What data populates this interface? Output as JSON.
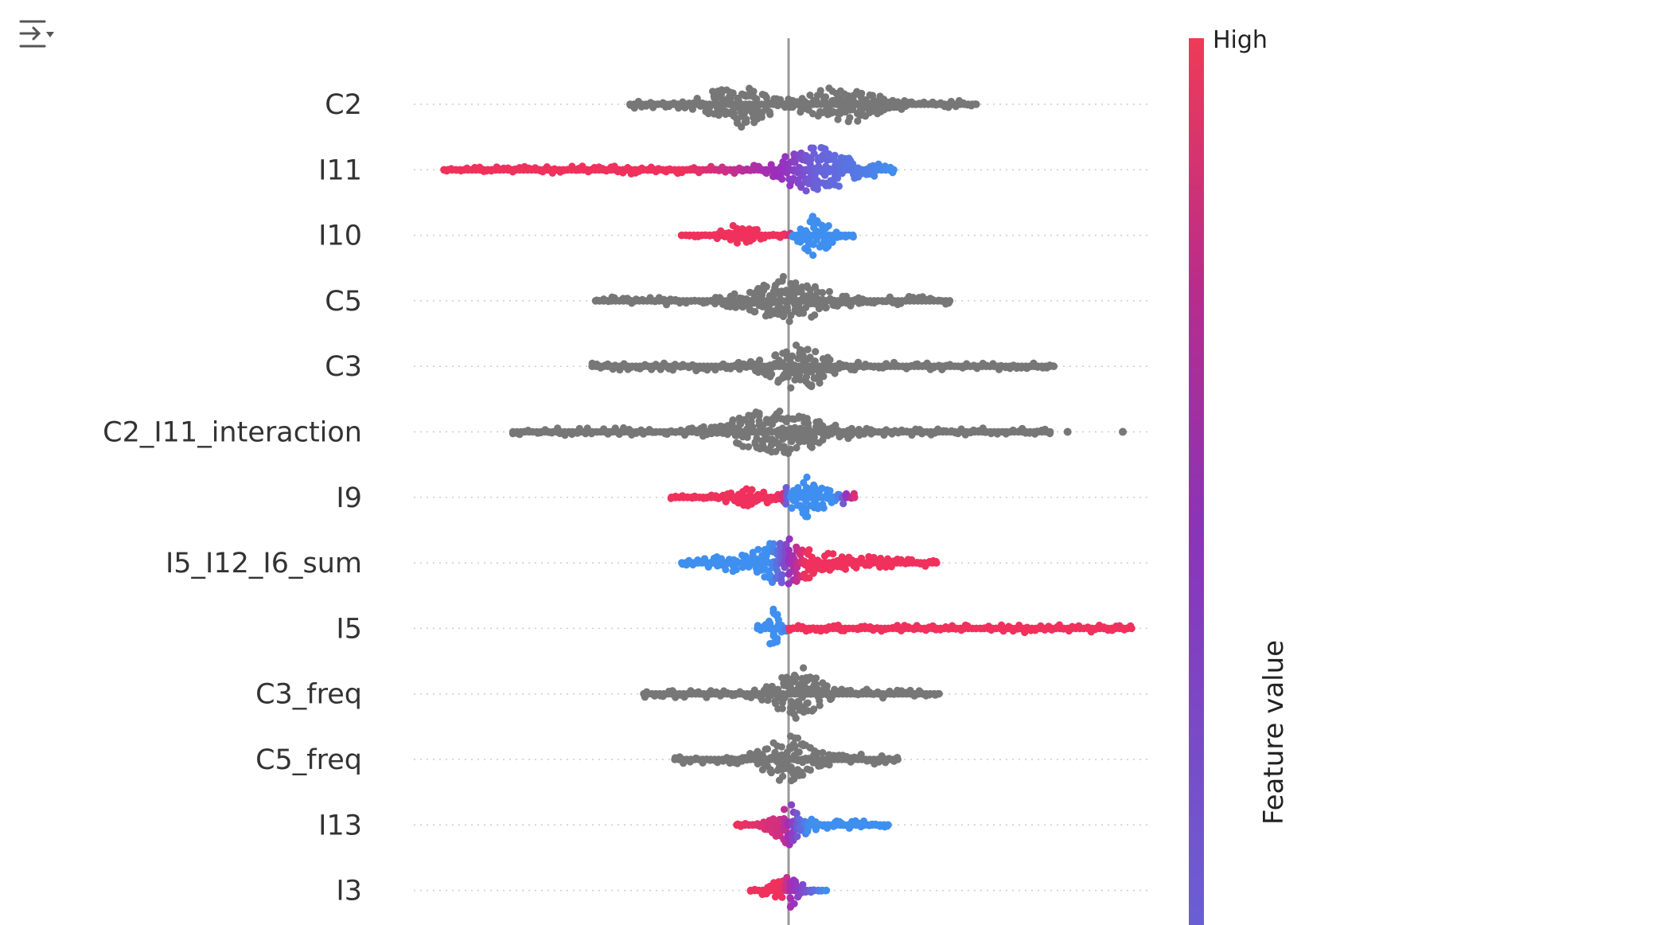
{
  "toolbar": {
    "icon": "output-options-icon"
  },
  "chart_data": {
    "type": "scatter",
    "subtype": "shap-beeswarm",
    "x_range": [
      -1.0,
      1.0
    ],
    "zero_line": 0,
    "features": [
      {
        "name": "C2",
        "colored": false,
        "min": -0.46,
        "max": 0.55,
        "bumps": [
          [
            -0.15,
            0.06,
            26
          ],
          [
            0.16,
            0.08,
            18
          ],
          [
            0.0,
            0.6,
            4
          ]
        ],
        "color_stops": []
      },
      {
        "name": "I11",
        "colored": true,
        "min": -1.0,
        "max": 0.31,
        "bumps": [
          [
            0.07,
            0.07,
            28
          ],
          [
            -0.4,
            0.6,
            3
          ],
          [
            0.2,
            0.08,
            5
          ]
        ],
        "color_stops": [
          [
            -1.0,
            1.0
          ],
          [
            -0.3,
            1.0
          ],
          [
            0.0,
            0.45
          ],
          [
            0.07,
            0.25
          ],
          [
            0.31,
            0.0
          ]
        ]
      },
      {
        "name": "I10",
        "colored": true,
        "min": -0.31,
        "max": 0.19,
        "bumps": [
          [
            -0.14,
            0.05,
            12
          ],
          [
            0.08,
            0.035,
            26
          ]
        ],
        "color_stops": [
          [
            -0.31,
            1.0
          ],
          [
            0.0,
            1.0
          ],
          [
            0.01,
            0.0
          ],
          [
            0.19,
            0.0
          ]
        ]
      },
      {
        "name": "C5",
        "colored": false,
        "min": -0.56,
        "max": 0.47,
        "bumps": [
          [
            -0.01,
            0.08,
            26
          ],
          [
            0.0,
            0.6,
            4
          ]
        ],
        "color_stops": []
      },
      {
        "name": "C3",
        "colored": false,
        "min": -0.57,
        "max": 0.77,
        "bumps": [
          [
            0.03,
            0.06,
            26
          ],
          [
            0.0,
            0.8,
            4
          ]
        ],
        "color_stops": []
      },
      {
        "name": "C2_I11_interaction",
        "colored": false,
        "min": -0.8,
        "max": 0.76,
        "bumps": [
          [
            -0.04,
            0.1,
            26
          ],
          [
            0.0,
            0.7,
            4
          ]
        ],
        "outliers": [
          0.81,
          0.97
        ],
        "color_stops": []
      },
      {
        "name": "I9",
        "colored": true,
        "min": -0.34,
        "max": 0.2,
        "bumps": [
          [
            -0.12,
            0.06,
            10
          ],
          [
            0.05,
            0.04,
            26
          ],
          [
            0.14,
            0.05,
            5
          ]
        ],
        "color_stops": [
          [
            -0.34,
            1.0
          ],
          [
            -0.02,
            1.0
          ],
          [
            0.0,
            0.0
          ],
          [
            0.14,
            0.0
          ],
          [
            0.2,
            1.0
          ]
        ]
      },
      {
        "name": "I5_I12_I6_sum",
        "colored": true,
        "min": -0.31,
        "max": 0.44,
        "bumps": [
          [
            0.0,
            0.06,
            26
          ],
          [
            -0.1,
            0.1,
            10
          ],
          [
            0.2,
            0.12,
            7
          ]
        ],
        "color_stops": [
          [
            -0.31,
            0.0
          ],
          [
            -0.05,
            0.0
          ],
          [
            0.0,
            0.45
          ],
          [
            0.05,
            1.0
          ],
          [
            0.44,
            1.0
          ]
        ]
      },
      {
        "name": "I5",
        "colored": true,
        "min": -0.09,
        "max": 1.0,
        "bumps": [
          [
            -0.04,
            0.015,
            28
          ],
          [
            0.6,
            0.6,
            3
          ]
        ],
        "color_stops": [
          [
            -0.09,
            0.0
          ],
          [
            -0.01,
            0.0
          ],
          [
            0.0,
            1.0
          ],
          [
            1.0,
            1.0
          ]
        ]
      },
      {
        "name": "C3_freq",
        "colored": false,
        "min": -0.42,
        "max": 0.44,
        "bumps": [
          [
            0.03,
            0.05,
            28
          ],
          [
            0.0,
            0.5,
            4
          ]
        ],
        "color_stops": []
      },
      {
        "name": "C5_freq",
        "colored": false,
        "min": -0.33,
        "max": 0.32,
        "bumps": [
          [
            0.0,
            0.05,
            28
          ],
          [
            0.0,
            0.35,
            5
          ]
        ],
        "color_stops": []
      },
      {
        "name": "I13",
        "colored": true,
        "min": -0.15,
        "max": 0.29,
        "bumps": [
          [
            0.0,
            0.04,
            26
          ],
          [
            0.18,
            0.06,
            6
          ]
        ],
        "color_stops": [
          [
            -0.15,
            1.0
          ],
          [
            -0.02,
            0.8
          ],
          [
            0.02,
            0.3
          ],
          [
            0.06,
            0.0
          ],
          [
            0.29,
            0.0
          ]
        ]
      },
      {
        "name": "I3",
        "colored": true,
        "min": -0.11,
        "max": 0.11,
        "bumps": [
          [
            0.01,
            0.02,
            22
          ],
          [
            -0.05,
            0.03,
            8
          ]
        ],
        "color_stops": [
          [
            -0.11,
            1.0
          ],
          [
            -0.02,
            1.0
          ],
          [
            0.01,
            0.5
          ],
          [
            0.11,
            0.0
          ]
        ]
      }
    ],
    "colorbar": {
      "high_label": "High",
      "axis_label": "Feature value",
      "high_color": "#ff0052",
      "mid_color": "#9b2ebd",
      "low_color": "#008bfb"
    },
    "neutral_color": "#777777"
  }
}
